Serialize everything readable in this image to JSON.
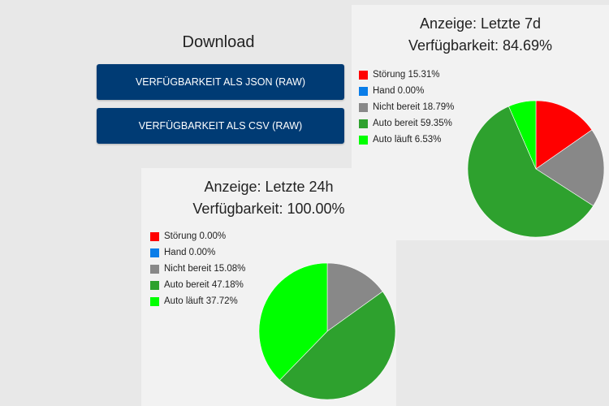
{
  "download": {
    "title": "Download",
    "json_button": "VERFÜGBARKEIT ALS JSON (RAW)",
    "csv_button": "VERFÜGBARKEIT ALS CSV (RAW)"
  },
  "colors": {
    "stoerung": "#ff0000",
    "hand": "#0a7de8",
    "nicht_bereit": "#888888",
    "auto_bereit": "#2ea12e",
    "auto_laeuft": "#00ff00",
    "button": "#003b74"
  },
  "card_7d": {
    "title": "Anzeige: Letzte 7d",
    "availability": "Verfügbarkeit: 84.69%",
    "legend": [
      {
        "label": "Störung 15.31%",
        "color": "#ff0000"
      },
      {
        "label": "Hand 0.00%",
        "color": "#0a7de8"
      },
      {
        "label": "Nicht bereit 18.79%",
        "color": "#888888"
      },
      {
        "label": "Auto bereit 59.35%",
        "color": "#2ea12e"
      },
      {
        "label": "Auto läuft 6.53%",
        "color": "#00ff00"
      }
    ]
  },
  "card_24h": {
    "title": "Anzeige: Letzte 24h",
    "availability": "Verfügbarkeit: 100.00%",
    "legend": [
      {
        "label": "Störung 0.00%",
        "color": "#ff0000"
      },
      {
        "label": "Hand 0.00%",
        "color": "#0a7de8"
      },
      {
        "label": "Nicht bereit 15.08%",
        "color": "#888888"
      },
      {
        "label": "Auto bereit 47.18%",
        "color": "#2ea12e"
      },
      {
        "label": "Auto läuft 37.72%",
        "color": "#00ff00"
      }
    ]
  },
  "chart_data": [
    {
      "type": "pie",
      "title": "Anzeige: Letzte 7d",
      "subtitle": "Verfügbarkeit: 84.69%",
      "categories": [
        "Störung",
        "Hand",
        "Nicht bereit",
        "Auto bereit",
        "Auto läuft"
      ],
      "values": [
        15.31,
        0.0,
        18.79,
        59.35,
        6.53
      ],
      "colors": [
        "#ff0000",
        "#0a7de8",
        "#888888",
        "#2ea12e",
        "#00ff00"
      ],
      "legend": "left"
    },
    {
      "type": "pie",
      "title": "Anzeige: Letzte 24h",
      "subtitle": "Verfügbarkeit: 100.00%",
      "categories": [
        "Störung",
        "Hand",
        "Nicht bereit",
        "Auto bereit",
        "Auto läuft"
      ],
      "values": [
        0.0,
        0.0,
        15.08,
        47.18,
        37.72
      ],
      "colors": [
        "#ff0000",
        "#0a7de8",
        "#888888",
        "#2ea12e",
        "#00ff00"
      ],
      "legend": "left"
    }
  ]
}
